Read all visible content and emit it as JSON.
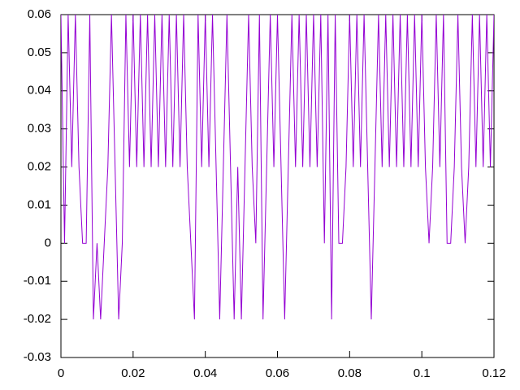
{
  "chart_data": {
    "type": "line",
    "color": "#9400d3",
    "x": [
      0,
      0.001,
      0.002,
      0.003,
      0.004,
      0.005,
      0.006,
      0.007,
      0.008,
      0.009,
      0.01,
      0.011,
      0.012,
      0.013,
      0.014,
      0.015,
      0.016,
      0.017,
      0.018,
      0.019,
      0.02,
      0.021,
      0.022,
      0.023,
      0.024,
      0.025,
      0.026,
      0.027,
      0.028,
      0.029,
      0.03,
      0.031,
      0.032,
      0.033,
      0.034,
      0.035,
      0.036,
      0.037,
      0.038,
      0.039,
      0.04,
      0.041,
      0.042,
      0.043,
      0.044,
      0.045,
      0.046,
      0.047,
      0.048,
      0.049,
      0.05,
      0.051,
      0.052,
      0.053,
      0.054,
      0.055,
      0.056,
      0.057,
      0.058,
      0.059,
      0.06,
      0.061,
      0.062,
      0.063,
      0.064,
      0.065,
      0.066,
      0.067,
      0.068,
      0.069,
      0.07,
      0.071,
      0.072,
      0.073,
      0.074,
      0.075,
      0.076,
      0.077,
      0.078,
      0.079,
      0.08,
      0.081,
      0.082,
      0.083,
      0.084,
      0.085,
      0.086,
      0.087,
      0.088,
      0.089,
      0.09,
      0.091,
      0.092,
      0.093,
      0.094,
      0.095,
      0.096,
      0.097,
      0.098,
      0.099,
      0.1,
      0.101,
      0.102,
      0.103,
      0.104,
      0.105,
      0.106,
      0.107,
      0.108,
      0.109,
      0.11,
      0.111,
      0.112,
      0.113,
      0.114,
      0.115,
      0.116,
      0.117,
      0.118,
      0.119,
      0.12
    ],
    "values": [
      0.06,
      0,
      0.06,
      0.02,
      0.06,
      0.02,
      0,
      0,
      0.06,
      -0.02,
      0,
      -0.02,
      0,
      0.02,
      0.06,
      0.02,
      -0.02,
      0,
      0.06,
      0.02,
      0.06,
      0.02,
      0.06,
      0.02,
      0.06,
      0.02,
      0.06,
      0.02,
      0.06,
      0.02,
      0.06,
      0.02,
      0.06,
      0.02,
      0.06,
      0.02,
      0,
      -0.02,
      0.06,
      0.02,
      0.06,
      0.02,
      0.06,
      0.02,
      -0.02,
      0.02,
      0.06,
      0.02,
      -0.02,
      0.02,
      -0.02,
      0.02,
      0.06,
      0.02,
      0,
      0.06,
      -0.02,
      0.02,
      0.06,
      0.02,
      0.06,
      0.02,
      -0.02,
      0.02,
      0.06,
      0.02,
      0.06,
      0.02,
      0.06,
      0.02,
      0.06,
      0.02,
      0.06,
      0,
      0.06,
      -0.02,
      0.06,
      0,
      0,
      0.02,
      0.06,
      0.02,
      0.06,
      0.02,
      0.06,
      0.02,
      -0.02,
      0.02,
      0.06,
      0.02,
      0.06,
      0.02,
      0.06,
      0.02,
      0.06,
      0.02,
      0.06,
      0.02,
      0.06,
      0.02,
      0.06,
      0.02,
      0,
      0.02,
      0.06,
      0.02,
      0.06,
      0,
      0,
      0.02,
      0.06,
      0.02,
      0,
      0.02,
      0.06,
      0.02,
      0.06,
      0.02,
      0.06,
      0.02,
      0.06
    ],
    "xlim": [
      0,
      0.12
    ],
    "xticks": [
      0,
      0.02,
      0.04,
      0.06,
      0.08,
      0.1,
      0.12
    ],
    "ylim": [
      -0.03,
      0.06
    ],
    "yticks": [
      -0.03,
      -0.02,
      -0.01,
      0,
      0.01,
      0.02,
      0.03,
      0.04,
      0.05,
      0.06
    ]
  }
}
